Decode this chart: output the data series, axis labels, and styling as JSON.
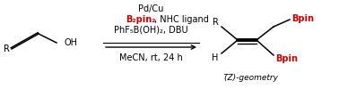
{
  "bg_color": "#ffffff",
  "black": "#000000",
  "red": "#cc0000",
  "fig_width": 3.78,
  "fig_height": 1.0,
  "dpi": 100,
  "reagent_line1": "Pd/Cu",
  "reagent_line2_red": "B₂pin₂",
  "reagent_line2_black": ", NHC ligand",
  "reagent_line3": "PhF₅B(OH)₂, DBU",
  "reagent_line4": "MeCN, rt, 24 h",
  "z_geom": "(̅Z)-geometry",
  "left_R": "R",
  "left_OH": "OH",
  "product_R": "R",
  "product_H": "H",
  "product_Bpin1": "Bpin",
  "product_Bpin2": "Bpin"
}
